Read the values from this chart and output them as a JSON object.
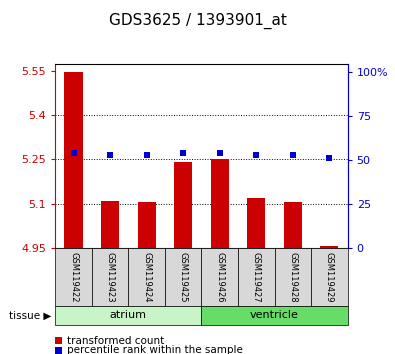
{
  "title": "GDS3625 / 1393901_at",
  "samples": [
    "GSM119422",
    "GSM119423",
    "GSM119424",
    "GSM119425",
    "GSM119426",
    "GSM119427",
    "GSM119428",
    "GSM119429"
  ],
  "red_values": [
    5.548,
    5.11,
    5.105,
    5.242,
    5.252,
    5.12,
    5.106,
    4.956
  ],
  "blue_values": [
    5.272,
    5.265,
    5.265,
    5.272,
    5.272,
    5.265,
    5.265,
    5.255
  ],
  "baseline": 4.95,
  "ylim_left": [
    4.95,
    5.575
  ],
  "ylim_right": [
    0,
    105
  ],
  "yticks_left": [
    4.95,
    5.1,
    5.25,
    5.4,
    5.55
  ],
  "ytick_labels_left": [
    "4.95",
    "5.1",
    "5.25",
    "5.4",
    "5.55"
  ],
  "yticks_right": [
    0,
    25,
    50,
    75,
    100
  ],
  "ytick_labels_right": [
    "0",
    "25",
    "50",
    "75",
    "100%"
  ],
  "groups": [
    {
      "label": "atrium",
      "samples": [
        0,
        1,
        2,
        3
      ],
      "color": "#c8f5c8"
    },
    {
      "label": "ventricle",
      "samples": [
        4,
        5,
        6,
        7
      ],
      "color": "#66dd66"
    }
  ],
  "bar_color": "#cc0000",
  "blue_color": "#0000cc",
  "left_axis_color": "#cc0000",
  "right_axis_color": "#0000cc",
  "bar_width": 0.5,
  "legend_red_label": "transformed count",
  "legend_blue_label": "percentile rank within the sample",
  "grid_dotted_at": [
    5.1,
    5.25,
    5.4
  ],
  "sample_box_color": "#d8d8d8",
  "tissue_label": "tissue ▶"
}
